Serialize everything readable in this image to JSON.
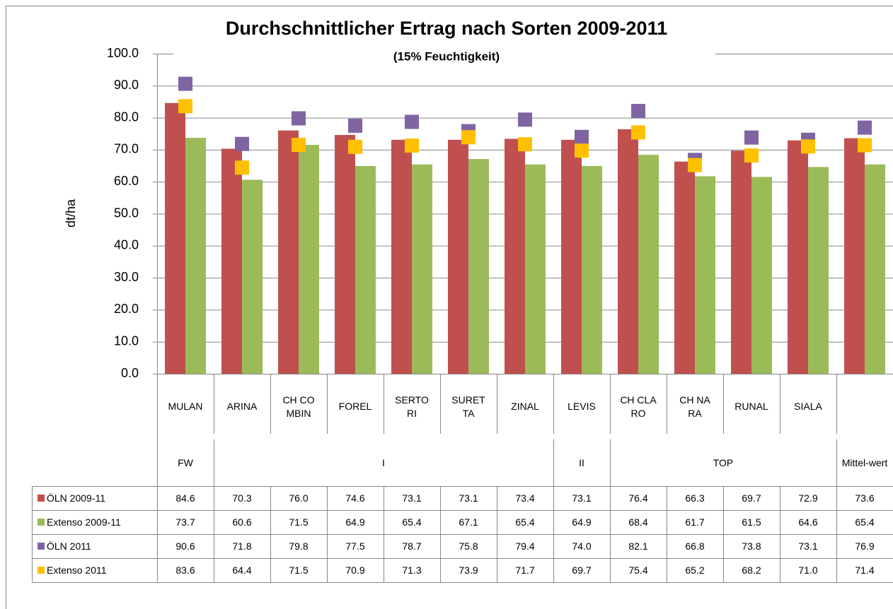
{
  "chart_data": {
    "type": "bar",
    "title": "Durchschnittlicher Ertrag nach Sorten 2009-2011",
    "subtitle": "(15% Feuchtigkeit)",
    "y_label": "dt/ha",
    "categories": [
      "MULAN",
      "ARINA",
      "CH COMBIN",
      "FOREL",
      "SERTORI",
      "SURETTA",
      "ZINAL",
      "LEVIS",
      "CH CLARO",
      "CH NARA",
      "RUNAL",
      "SIALA",
      null
    ],
    "groups": [
      {
        "label": "FW",
        "count": 1
      },
      {
        "label": "I",
        "count": 6
      },
      {
        "label": "II",
        "count": 1
      },
      {
        "label": "TOP",
        "count": 4
      },
      {
        "label": "Mittel-wert",
        "count": 1
      }
    ],
    "ylim": [
      0,
      100
    ],
    "yticks": [
      {
        "value": 0,
        "label": "0.0"
      },
      {
        "value": 10,
        "label": "10.0"
      },
      {
        "value": 20,
        "label": "20.0"
      },
      {
        "value": 30,
        "label": "30.0"
      },
      {
        "value": 40,
        "label": "40.0"
      },
      {
        "value": 50,
        "label": "50.0"
      },
      {
        "value": 60,
        "label": "60.0"
      },
      {
        "value": 70,
        "label": "70.0"
      },
      {
        "value": 80,
        "label": "80.0"
      },
      {
        "value": 90,
        "label": "90.0"
      },
      {
        "value": 100,
        "label": "100.0"
      }
    ],
    "grid": true,
    "series": [
      {
        "name": "ÖLN 2009-11",
        "style": "bar",
        "color": "#c0504d",
        "values": [
          84.6,
          70.3,
          76.0,
          74.6,
          73.1,
          73.1,
          73.4,
          73.1,
          76.4,
          66.3,
          69.7,
          72.9,
          73.6
        ],
        "value_labels": [
          "84.6",
          "70.3",
          "76.0",
          "74.6",
          "73.1",
          "73.1",
          "73.4",
          "73.1",
          "76.4",
          "66.3",
          "69.7",
          "72.9",
          "73.6"
        ]
      },
      {
        "name": "Extenso 2009-11",
        "style": "bar",
        "color": "#9bbb59",
        "values": [
          73.7,
          60.6,
          71.5,
          64.9,
          65.4,
          67.1,
          65.4,
          64.9,
          68.4,
          61.7,
          61.5,
          64.6,
          65.4
        ],
        "value_labels": [
          "73.7",
          "60.6",
          "71.5",
          "64.9",
          "65.4",
          "67.1",
          "65.4",
          "64.9",
          "68.4",
          "61.7",
          "61.5",
          "64.6",
          "65.4"
        ]
      },
      {
        "name": "ÖLN 2011",
        "style": "marker",
        "color": "#8064a2",
        "values": [
          90.6,
          71.8,
          79.8,
          77.5,
          78.7,
          75.8,
          79.4,
          74.0,
          82.1,
          66.8,
          73.8,
          73.1,
          76.9
        ],
        "value_labels": [
          "90.6",
          "71.8",
          "79.8",
          "77.5",
          "78.7",
          "75.8",
          "79.4",
          "74.0",
          "82.1",
          "66.8",
          "73.8",
          "73.1",
          "76.9"
        ]
      },
      {
        "name": "Extenso 2011",
        "style": "marker",
        "color": "#ffc000",
        "values": [
          83.6,
          64.4,
          71.5,
          70.9,
          71.3,
          73.9,
          71.7,
          69.7,
          75.4,
          65.2,
          68.2,
          71.0,
          71.4
        ],
        "value_labels": [
          "83.6",
          "64.4",
          "71.5",
          "70.9",
          "71.3",
          "73.9",
          "71.7",
          "69.7",
          "75.4",
          "65.2",
          "68.2",
          "71.0",
          "71.4"
        ]
      }
    ]
  }
}
